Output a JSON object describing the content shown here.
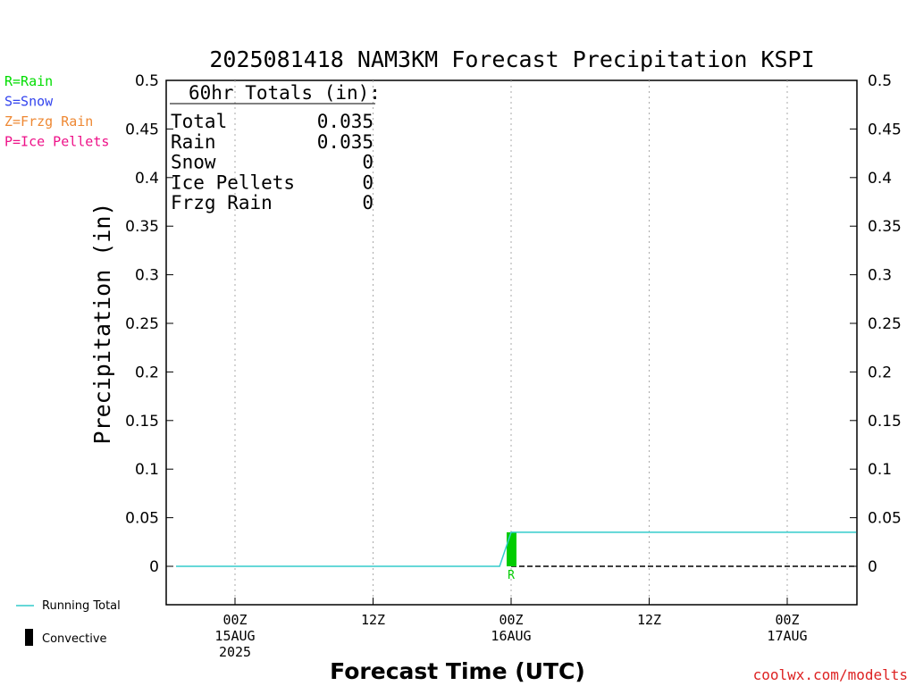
{
  "chart_data": {
    "type": "bar",
    "title": "2025081418 NAM3KM Forecast Precipitation KSPI",
    "ylabel": "Precipitation (in)",
    "xlabel": "Forecast Time (UTC)",
    "ylim": [
      -0.04,
      0.5
    ],
    "xlim": [
      -4,
      54
    ],
    "yticks": [
      0,
      0.05,
      0.1,
      0.15,
      0.2,
      0.25,
      0.3,
      0.35,
      0.4,
      0.45,
      0.5
    ],
    "xticks": [
      {
        "x": 6,
        "lines": [
          "00Z",
          "15AUG",
          "2025"
        ]
      },
      {
        "x": 18,
        "lines": [
          "12Z"
        ]
      },
      {
        "x": 30,
        "lines": [
          "00Z",
          "16AUG"
        ]
      },
      {
        "x": 42,
        "lines": [
          "12Z"
        ]
      },
      {
        "x": 54,
        "lines": [
          "00Z",
          "17AUG"
        ]
      }
    ],
    "bars": [
      {
        "x": 30,
        "value": 0.035,
        "type": "R",
        "color": "#00cc00"
      }
    ],
    "running_total": {
      "color": "#33cccc",
      "points": [
        [
          1,
          0
        ],
        [
          29,
          0
        ],
        [
          30,
          0.035
        ],
        [
          60,
          0.035
        ]
      ]
    },
    "zero_line_color": "#000000",
    "grid": "vertical dotted at tick positions",
    "totals_box": {
      "header": "60hr Totals (in):",
      "rows": [
        {
          "label": "Total",
          "value": "0.035"
        },
        {
          "label": "Rain",
          "value": "0.035"
        },
        {
          "label": "Snow",
          "value": "0"
        },
        {
          "label": "Ice Pellets",
          "value": "0"
        },
        {
          "label": "Frzg Rain",
          "value": "0"
        }
      ]
    }
  },
  "type_legend": [
    {
      "label": "R=Rain",
      "color": "#00dd00"
    },
    {
      "label": "S=Snow",
      "color": "#3344ee"
    },
    {
      "label": "Z=Frzg Rain",
      "color": "#ee8833"
    },
    {
      "label": "P=Ice Pellets",
      "color": "#ee1188"
    }
  ],
  "bottom_legend": {
    "running_total": "Running Total",
    "convective": "Convective"
  },
  "watermark": "coolwx.com/modelts",
  "watermark_color": "#dd2222"
}
